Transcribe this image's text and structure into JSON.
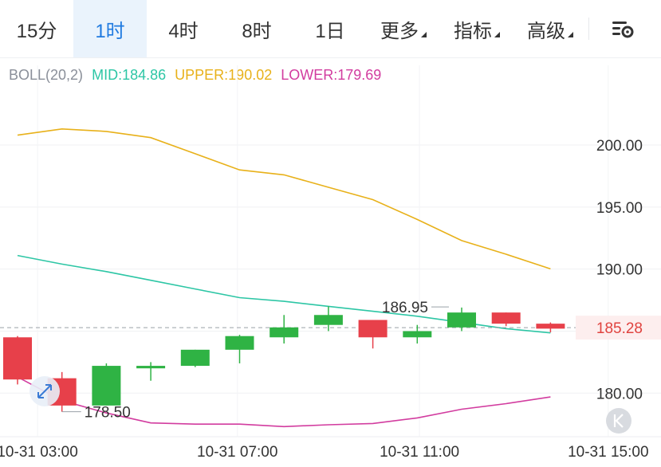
{
  "tabs": [
    {
      "label": "15分",
      "active": false
    },
    {
      "label": "1时",
      "active": true
    },
    {
      "label": "4时",
      "active": false
    },
    {
      "label": "8时",
      "active": false
    },
    {
      "label": "1日",
      "active": false
    },
    {
      "label": "更多",
      "active": false,
      "dropdown": true
    },
    {
      "label": "指标",
      "active": false,
      "dropdown": true
    },
    {
      "label": "高级",
      "active": false,
      "dropdown": true
    }
  ],
  "indicator": {
    "name": "BOLL(20,2)",
    "mid": "MID:184.86",
    "upper": "UPPER:190.02",
    "lower": "LOWER:179.69"
  },
  "colors": {
    "accent": "#1f7ae0",
    "up": "#2fb344",
    "down": "#e7404a",
    "mid": "#2dc6a5",
    "upper": "#e8b11a",
    "lower": "#d23c9f"
  },
  "icons": {
    "settings": "chart-settings-icon",
    "expand": "expand-arrows-icon",
    "jump_latest": "jump-to-latest-icon"
  },
  "chart_data": {
    "type": "candlestick",
    "ylim": [
      177,
      204.5
    ],
    "yticks": [
      "200.00",
      "195.00",
      "190.00",
      "180.00"
    ],
    "xticks": [
      "10-31 03:00",
      "10-31 07:00",
      "10-31 11:00",
      "10-31 15:00"
    ],
    "candles": [
      {
        "open": 184.5,
        "close": 181.1,
        "high": 184.6,
        "low": 180.7
      },
      {
        "open": 181.2,
        "close": 179.0,
        "high": 181.7,
        "low": 178.5
      },
      {
        "open": 179.0,
        "close": 182.2,
        "high": 182.4,
        "low": 179.0
      },
      {
        "open": 182.0,
        "close": 182.2,
        "high": 182.5,
        "low": 181.0
      },
      {
        "open": 182.2,
        "close": 183.5,
        "high": 183.5,
        "low": 182.1
      },
      {
        "open": 183.5,
        "close": 184.6,
        "high": 184.7,
        "low": 182.4
      },
      {
        "open": 184.5,
        "close": 185.3,
        "high": 186.3,
        "low": 184.0
      },
      {
        "open": 185.5,
        "close": 186.3,
        "high": 187.0,
        "low": 185.0
      },
      {
        "open": 185.9,
        "close": 184.5,
        "high": 185.9,
        "low": 183.6
      },
      {
        "open": 184.5,
        "close": 185.0,
        "high": 185.5,
        "low": 184.0
      },
      {
        "open": 185.3,
        "close": 186.5,
        "high": 186.9,
        "low": 185.0
      },
      {
        "open": 186.5,
        "close": 185.6,
        "high": 186.5,
        "low": 185.4
      },
      {
        "open": 185.6,
        "close": 185.2,
        "high": 185.7,
        "low": 184.9
      }
    ],
    "upper": [
      200.8,
      201.3,
      201.1,
      200.6,
      199.3,
      198.0,
      197.6,
      196.6,
      195.6,
      194.0,
      192.3,
      191.2,
      190.02
    ],
    "mid": [
      191.1,
      190.4,
      189.8,
      189.1,
      188.4,
      187.7,
      187.4,
      187.0,
      186.6,
      186.2,
      185.7,
      185.2,
      184.86
    ],
    "lower": [
      181.3,
      179.4,
      178.4,
      177.6,
      177.5,
      177.5,
      177.3,
      177.45,
      177.55,
      178.0,
      178.7,
      179.15,
      179.69
    ],
    "current_price": "185.28",
    "current_value": 185.28,
    "annotations": [
      {
        "label": "186.95",
        "value": 186.95
      },
      {
        "label": "178.50",
        "value": 178.5
      }
    ]
  }
}
